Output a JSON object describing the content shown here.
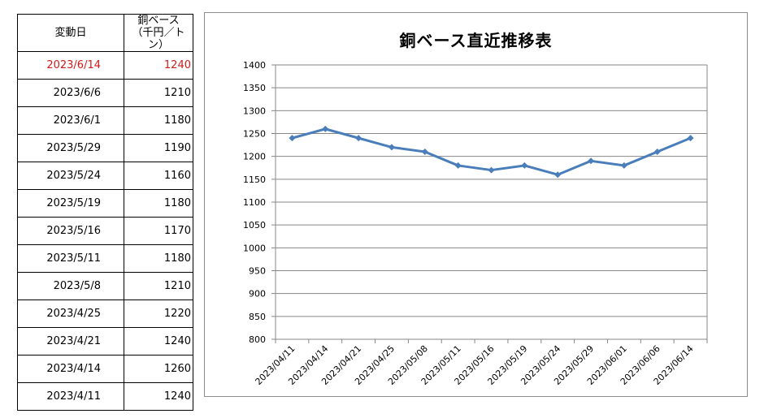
{
  "table": {
    "headers": {
      "date": "変動日",
      "value_line1": "銅ベース",
      "value_line2": "（千円／トン）"
    },
    "rows": [
      {
        "date": "2023/6/14",
        "value": "1240"
      },
      {
        "date": "2023/6/6",
        "value": "1210"
      },
      {
        "date": "2023/6/1",
        "value": "1180"
      },
      {
        "date": "2023/5/29",
        "value": "1190"
      },
      {
        "date": "2023/5/24",
        "value": "1160"
      },
      {
        "date": "2023/5/19",
        "value": "1180"
      },
      {
        "date": "2023/5/16",
        "value": "1170"
      },
      {
        "date": "2023/5/11",
        "value": "1180"
      },
      {
        "date": "2023/5/8",
        "value": "1210"
      },
      {
        "date": "2023/4/25",
        "value": "1220"
      },
      {
        "date": "2023/4/21",
        "value": "1240"
      },
      {
        "date": "2023/4/14",
        "value": "1260"
      },
      {
        "date": "2023/4/11",
        "value": "1240"
      }
    ],
    "highlight_color": "#d21a1a"
  },
  "chart_data": {
    "type": "line",
    "title": "銅ベース直近推移表",
    "xlabel": "",
    "ylabel": "",
    "categories": [
      "2023/04/11",
      "2023/04/14",
      "2023/04/21",
      "2023/04/25",
      "2023/05/08",
      "2023/05/11",
      "2023/05/16",
      "2023/05/19",
      "2023/05/24",
      "2023/05/29",
      "2023/06/01",
      "2023/06/06",
      "2023/06/14"
    ],
    "series": [
      {
        "values": [
          1240,
          1260,
          1240,
          1220,
          1210,
          1180,
          1170,
          1180,
          1160,
          1190,
          1180,
          1210,
          1240
        ],
        "color": "#4a7ebb"
      }
    ],
    "ylim": [
      800,
      1400
    ],
    "ytick_step": 50,
    "grid": true,
    "legend": "none"
  }
}
